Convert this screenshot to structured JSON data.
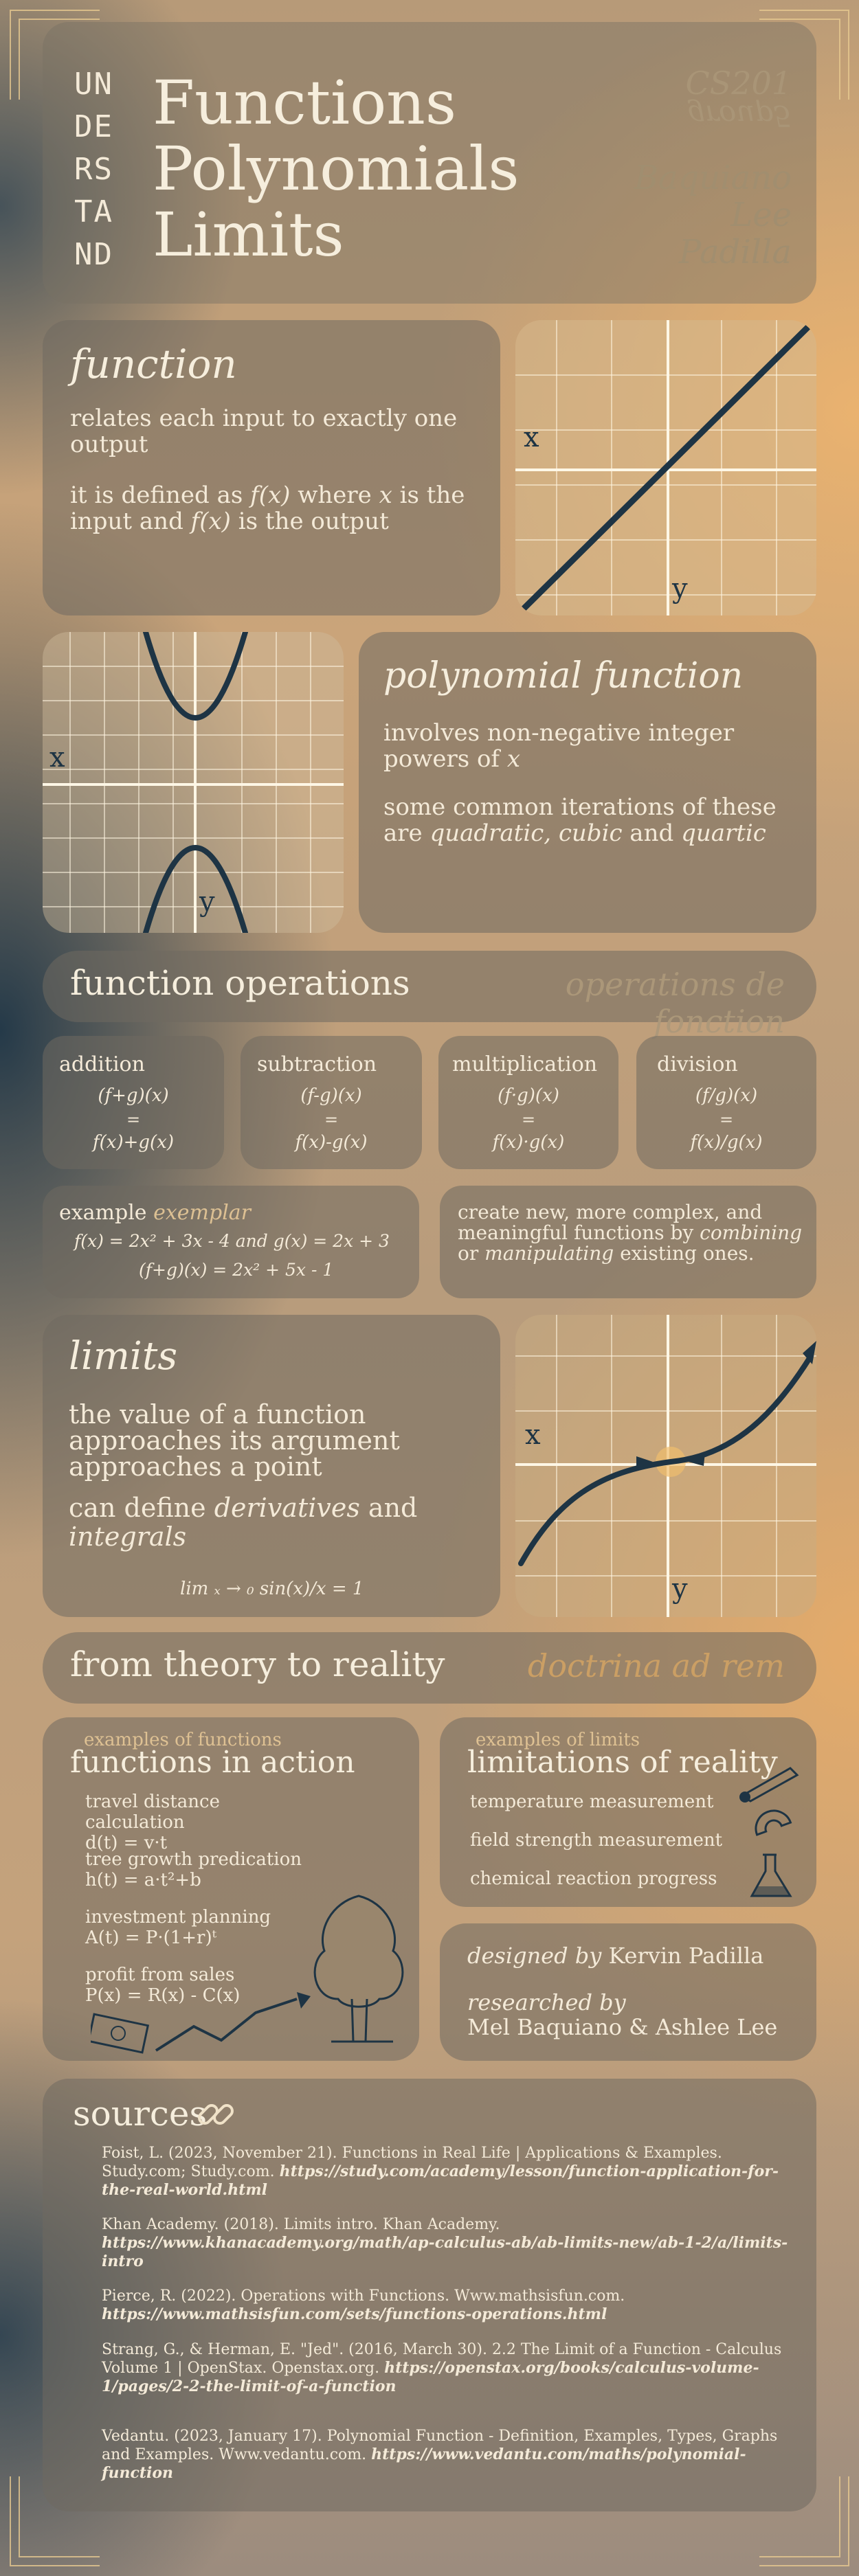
{
  "header": {
    "understand_lines": [
      "UN",
      "DE",
      "RS",
      "TA",
      "ND"
    ],
    "title_lines": [
      "Functions",
      "Polynomials",
      "Limits"
    ],
    "course": "CS201",
    "group": "group5",
    "authors": [
      "Baquiano",
      "Lee",
      "Padilla"
    ]
  },
  "function_section": {
    "heading": "function",
    "line1": "relates each input to exactly one output",
    "line2_pre": "it is defined as ",
    "line2_fx": "f(x)",
    "line2_mid": " where ",
    "line2_x": "x",
    "line2_mid2": " is the input and ",
    "line2_fx2": "f(x)",
    "line2_post": " is the output",
    "graph_x_label": "x",
    "graph_y_label": "y"
  },
  "polynomial_section": {
    "heading": "polynomial function",
    "line1_pre": "involves non-negative integer powers of ",
    "line1_x": "x",
    "line2_pre": "some common iterations of these are ",
    "line2_a": "quadratic, cubic",
    "line2_mid": " and ",
    "line2_b": "quartic",
    "graph_x_label": "x",
    "graph_y_label": "y"
  },
  "operations": {
    "heading": "function operations",
    "heading_latin": "operations de fonction",
    "cards": [
      {
        "name": "addition",
        "lhs": "(f+g)(x)",
        "eq": "=",
        "rhs": "f(x)+g(x)"
      },
      {
        "name": "subtraction",
        "lhs": "(f-g)(x)",
        "eq": "=",
        "rhs": "f(x)-g(x)"
      },
      {
        "name": "multiplication",
        "lhs": "(f·g)(x)",
        "eq": "=",
        "rhs": "f(x)·g(x)"
      },
      {
        "name": "division",
        "lhs": "(f/g)(x)",
        "eq": "=",
        "rhs": "f(x)/g(x)"
      }
    ],
    "example_label": "example",
    "example_latin": "exemplar",
    "example_line1": "f(x) = 2x² + 3x - 4 and g(x) = 2x + 3",
    "example_line2": "(f+g)(x) = 2x² + 5x - 1",
    "desc_pre": "create new, more complex, and meaningful functions by ",
    "desc_a": "combining",
    "desc_mid": " or ",
    "desc_b": "manipulating",
    "desc_post": " existing ones."
  },
  "limits_section": {
    "heading": "limits",
    "line1": "the value of a function approaches its argument approaches a point",
    "line2_pre": "can define ",
    "line2_a": "derivatives",
    "line2_mid": " and ",
    "line2_b": "integrals",
    "formula": "lim ₓ → ₀  sin(x)/x = 1",
    "graph_x_label": "x",
    "graph_y_label": "y"
  },
  "theory": {
    "heading": "from theory to reality",
    "latin": "doctrina ad rem"
  },
  "functions_in_action": {
    "small": "examples of functions",
    "heading": "functions in action",
    "items": [
      {
        "title": "travel distance calculation",
        "formula": "d(t) = v·t"
      },
      {
        "title": "tree growth predication",
        "formula": "h(t) = a·t²+b"
      },
      {
        "title": "investment planning",
        "formula": "A(t) = P·(1+r)ᵗ"
      },
      {
        "title": "profit from sales",
        "formula": "P(x) = R(x) - C(x)"
      }
    ]
  },
  "limitations": {
    "small": "examples of limits",
    "heading": "limitations of reality",
    "items": [
      "temperature measurement",
      "field strength measurement",
      "chemical reaction progress"
    ]
  },
  "credits": {
    "designed_label": "designed by",
    "designed_name": "Kervin Padilla",
    "researched_label": "researched by",
    "researched_names": "Mel Baquiano & Ashlee Lee"
  },
  "sources": {
    "heading": "sources",
    "entries": [
      {
        "text": "Foist, L. (2023, November 21). Functions in Real Life | Applications & Examples. Study.com; Study.com. ",
        "url": "https://study.com/academy/lesson/function-application-for-the-real-world.html"
      },
      {
        "text": "Khan Academy. (2018). Limits intro. Khan Academy. ",
        "url": "https://www.khanacademy.org/math/ap-calculus-ab/ab-limits-new/ab-1-2/a/limits-intro"
      },
      {
        "text": "Pierce, R. (2022). Operations with Functions. Www.mathsisfun.com. ",
        "url": "https://www.mathsisfun.com/sets/functions-operations.html"
      },
      {
        "text": "Strang, G., & Herman, E. \"Jed\". (2016, March 30). 2.2 The Limit of a Function - Calculus Volume 1 | OpenStax. Openstax.org. ",
        "url": "https://openstax.org/books/calculus-volume-1/pages/2-2-the-limit-of-a-function"
      },
      {
        "text": "Vedantu. (2023, January 17). Polynomial Function - Definition, Examples, Types, Graphs and Examples. Www.vedantu.com. ",
        "url": "https://www.vedantu.com/maths/polynomial-function"
      }
    ]
  },
  "colors": {
    "navy": "#1e3444",
    "cream": "#f4ead8",
    "gold": "#e7c990",
    "panel": "#706a60"
  }
}
